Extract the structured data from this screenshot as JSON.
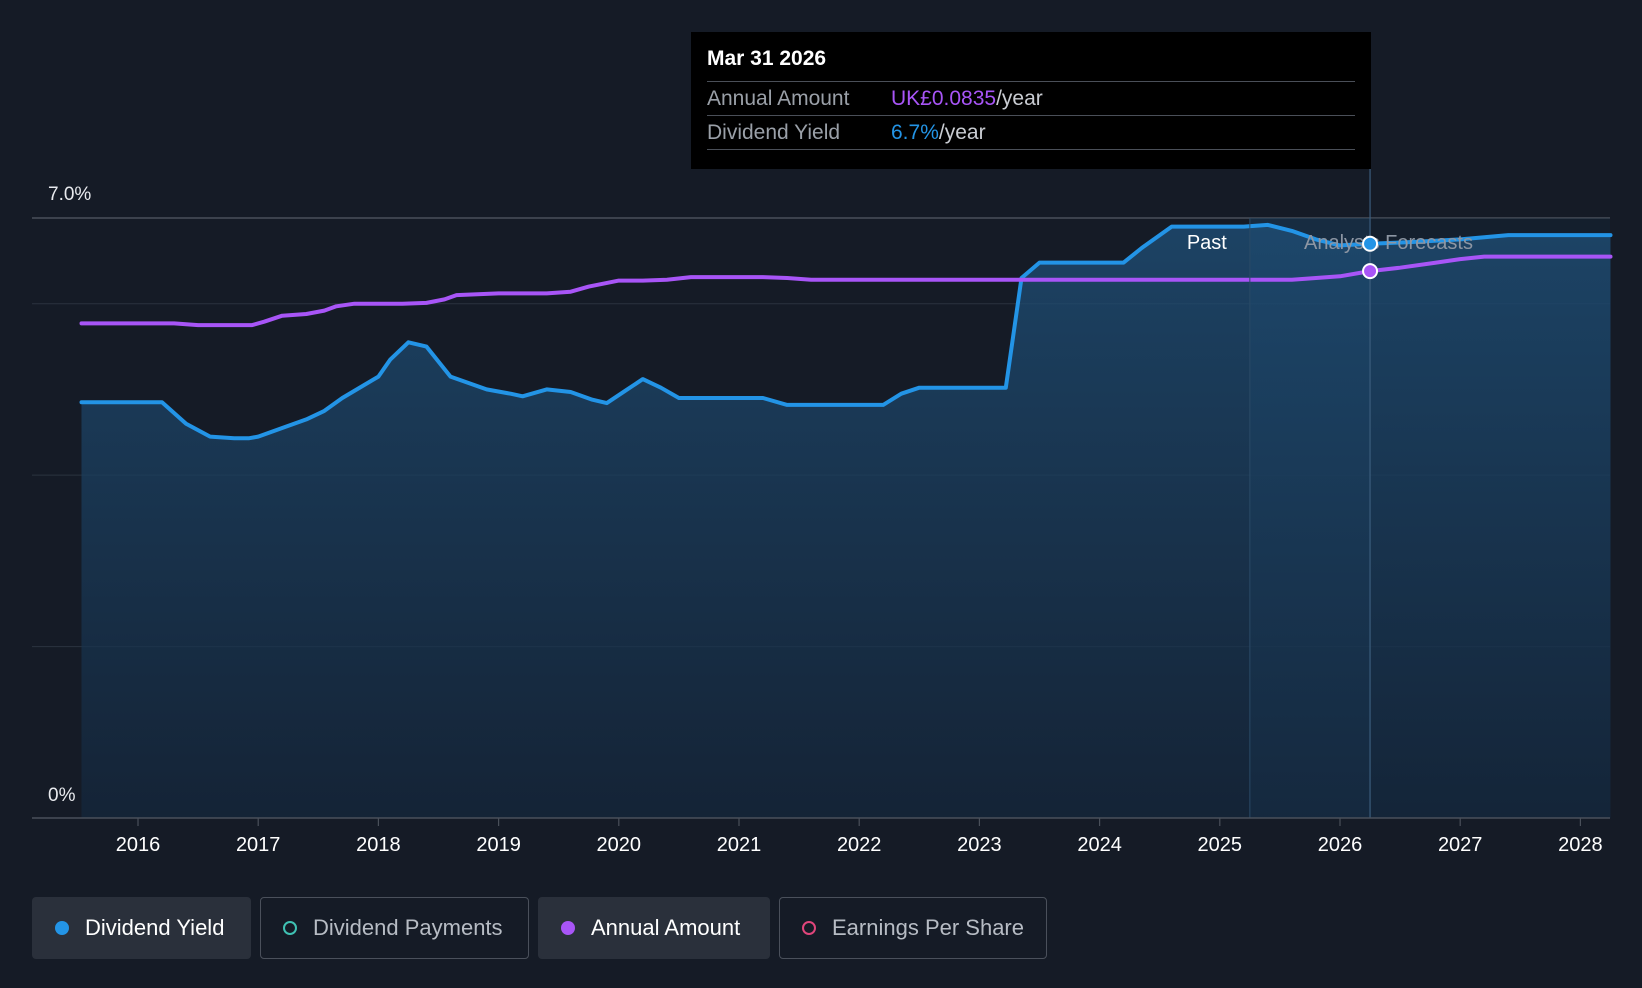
{
  "colors": {
    "background": "#151b26",
    "dividend_yield": "#2394e6",
    "annual_amount": "#a855f7",
    "dividend_payments": "#3fc1b3",
    "earnings_per_share": "#e0457b"
  },
  "tooltip": {
    "date": "Mar 31 2026",
    "annual_amount_label": "Annual Amount",
    "annual_amount_value": "UK£0.0835",
    "annual_amount_unit": "/year",
    "dividend_yield_label": "Dividend Yield",
    "dividend_yield_value": "6.7%",
    "dividend_yield_unit": "/year"
  },
  "zones": {
    "past_label": "Past",
    "forecast_label": "Analysts Forecasts"
  },
  "legend": [
    {
      "label": "Dividend Yield",
      "state": "active",
      "marker": "filled-dot",
      "color": "#2394e6"
    },
    {
      "label": "Dividend Payments",
      "state": "inactive",
      "marker": "hollow-dot",
      "color": "#3fc1b3"
    },
    {
      "label": "Annual Amount",
      "state": "active",
      "marker": "filled-dot",
      "color": "#a855f7"
    },
    {
      "label": "Earnings Per Share",
      "state": "inactive",
      "marker": "hollow-dot",
      "color": "#e0457b"
    }
  ],
  "chart_data": {
    "type": "line",
    "y_axis_labels": [
      "7.0%",
      "0%"
    ],
    "ylim": [
      0,
      7.0
    ],
    "x_tick_labels": [
      "2016",
      "2017",
      "2018",
      "2019",
      "2020",
      "2021",
      "2022",
      "2023",
      "2024",
      "2025",
      "2026",
      "2027",
      "2028"
    ],
    "xlim": [
      2015.0,
      2028.25
    ],
    "grid": true,
    "hover_date": 2026.25,
    "past_forecast_boundary": 2025.25,
    "series": [
      {
        "name": "Dividend Yield",
        "color": "#2394e6",
        "filled": true,
        "x": [
          2015.53,
          2016.0,
          2016.2,
          2016.4,
          2016.6,
          2016.8,
          2016.92,
          2017.0,
          2017.2,
          2017.4,
          2017.55,
          2017.7,
          2017.88,
          2018.0,
          2018.1,
          2018.25,
          2018.4,
          2018.6,
          2018.9,
          2019.1,
          2019.2,
          2019.4,
          2019.6,
          2019.78,
          2019.9,
          2020.05,
          2020.2,
          2020.35,
          2020.5,
          2021.0,
          2021.2,
          2021.4,
          2021.7,
          2022.0,
          2022.2,
          2022.35,
          2022.5,
          2023.0,
          2023.15,
          2023.22,
          2023.35,
          2023.5,
          2024.0,
          2024.2,
          2024.35,
          2024.6,
          2025.0,
          2025.2,
          2025.4,
          2025.6,
          2025.8,
          2026.0,
          2026.25,
          2026.6,
          2027.0,
          2027.4,
          2027.6,
          2028.25
        ],
        "y": [
          4.85,
          4.85,
          4.85,
          4.6,
          4.45,
          4.43,
          4.43,
          4.45,
          4.55,
          4.65,
          4.75,
          4.9,
          5.05,
          5.15,
          5.35,
          5.55,
          5.5,
          5.15,
          5.0,
          4.95,
          4.92,
          5.0,
          4.97,
          4.88,
          4.84,
          4.98,
          5.12,
          5.02,
          4.9,
          4.9,
          4.9,
          4.82,
          4.82,
          4.82,
          4.82,
          4.95,
          5.02,
          5.02,
          5.02,
          5.02,
          6.3,
          6.48,
          6.48,
          6.48,
          6.65,
          6.9,
          6.9,
          6.9,
          6.92,
          6.85,
          6.75,
          6.68,
          6.7,
          6.72,
          6.75,
          6.8,
          6.8,
          6.8
        ]
      },
      {
        "name": "Annual Amount",
        "color": "#a855f7",
        "filled": false,
        "x": [
          2015.53,
          2016.0,
          2016.3,
          2016.5,
          2016.8,
          2016.95,
          2017.05,
          2017.2,
          2017.4,
          2017.55,
          2017.65,
          2017.8,
          2018.0,
          2018.2,
          2018.4,
          2018.55,
          2018.65,
          2019.0,
          2019.2,
          2019.4,
          2019.6,
          2019.75,
          2020.0,
          2020.2,
          2020.4,
          2020.6,
          2021.0,
          2021.2,
          2021.4,
          2021.6,
          2022.0,
          2023.0,
          2024.0,
          2025.0,
          2025.4,
          2025.6,
          2025.8,
          2026.0,
          2026.25,
          2026.5,
          2026.8,
          2027.0,
          2027.2,
          2028.25
        ],
        "y": [
          5.77,
          5.77,
          5.77,
          5.75,
          5.75,
          5.75,
          5.79,
          5.86,
          5.88,
          5.92,
          5.97,
          6.0,
          6.0,
          6.0,
          6.01,
          6.05,
          6.1,
          6.12,
          6.12,
          6.12,
          6.14,
          6.2,
          6.27,
          6.27,
          6.28,
          6.31,
          6.31,
          6.31,
          6.3,
          6.28,
          6.28,
          6.28,
          6.28,
          6.28,
          6.28,
          6.28,
          6.3,
          6.32,
          6.38,
          6.42,
          6.48,
          6.52,
          6.55,
          6.55
        ]
      }
    ]
  }
}
